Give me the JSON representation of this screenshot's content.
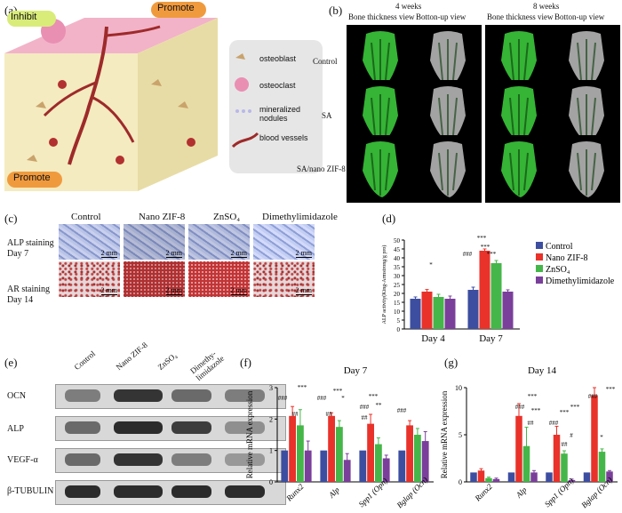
{
  "panels": {
    "a": "(a)",
    "b": "(b)",
    "c": "(c)",
    "d": "(d)",
    "e": "(e)",
    "f": "(f)",
    "g": "(g)"
  },
  "panel_a": {
    "inhibit": "Inhibit",
    "promote_top": "Promote",
    "promote_bottom": "Promote",
    "legend": [
      "osteoblast",
      "osteoclast",
      "mineralized nodules",
      "blood vessels"
    ]
  },
  "panel_b": {
    "weeks": [
      "4 weeks",
      "8 weeks"
    ],
    "views": [
      "Bone thickness view",
      "Botton-up view",
      "Bone thickness view",
      "Botton-up view"
    ],
    "rows": [
      "Control",
      "SA",
      "SA/nano ZIF-8"
    ]
  },
  "panel_c": {
    "columns": [
      "Control",
      "Nano ZIF-8",
      "ZnSO₄",
      "Dimethylimidazole"
    ],
    "rows": [
      [
        "ALP staining",
        "Day 7"
      ],
      [
        "AR staining",
        "Day 14"
      ]
    ],
    "scale": "2 mm"
  },
  "panel_e": {
    "lanes": [
      "Control",
      "Nano ZIF-8",
      "ZnSO₄",
      "Dimethy-limidazole"
    ],
    "rows": [
      "OCN",
      "ALP",
      "VEGF-α",
      "β-TUBULIN"
    ]
  },
  "chart_data": [
    {
      "type": "bar",
      "ylabel": "ALP activity(King-Armstrong/g pro)",
      "categories": [
        "Day 4",
        "Day 7"
      ],
      "ylim": [
        0,
        50
      ],
      "yticks": [
        0,
        5,
        10,
        15,
        20,
        25,
        30,
        35,
        40,
        45,
        50
      ],
      "series": [
        {
          "name": "Control",
          "color": "#3d4ea0",
          "values": [
            17,
            22
          ],
          "err": [
            1,
            1.5
          ]
        },
        {
          "name": "Nano ZIF-8",
          "color": "#e8322a",
          "values": [
            21,
            44
          ],
          "err": [
            1.2,
            1
          ]
        },
        {
          "name": "ZnSO₄",
          "color": "#45b649",
          "values": [
            18,
            37
          ],
          "err": [
            1.5,
            1.5
          ]
        },
        {
          "name": "Dimethylimidazole",
          "color": "#7a3f9a",
          "values": [
            17,
            21
          ],
          "err": [
            1.5,
            1
          ]
        }
      ],
      "annotations": [
        "*",
        "***",
        "***",
        "***",
        "###"
      ]
    },
    {
      "type": "bar",
      "title": "Day 7",
      "ylabel": "Relative mRNA expression",
      "categories": [
        "Runx2",
        "Alp",
        "Spp1 (Opn)",
        "Bglap (Ocn)"
      ],
      "ylim": [
        0,
        3
      ],
      "yticks": [
        0,
        1,
        2,
        3
      ],
      "series": [
        {
          "name": "Control",
          "color": "#3d4ea0",
          "values": [
            1,
            1,
            1,
            1
          ],
          "err": [
            0,
            0,
            0,
            0
          ]
        },
        {
          "name": "Nano ZIF-8",
          "color": "#e8322a",
          "values": [
            2.1,
            2.1,
            1.85,
            1.8
          ],
          "err": [
            0.3,
            0.1,
            0.3,
            0.15
          ]
        },
        {
          "name": "ZnSO₄",
          "color": "#45b649",
          "values": [
            1.8,
            1.75,
            1.2,
            1.5
          ],
          "err": [
            0.5,
            0.2,
            0.2,
            0.2
          ]
        },
        {
          "name": "Dimethylimidazole",
          "color": "#7a3f9a",
          "values": [
            1,
            0.7,
            0.75,
            1.3
          ],
          "err": [
            0.3,
            0.2,
            0.1,
            0.3
          ]
        }
      ],
      "annotations": [
        "***",
        "***",
        "***",
        "*",
        "**",
        "##",
        "###",
        "###",
        "###",
        "###",
        "##",
        "##"
      ]
    },
    {
      "type": "bar",
      "title": "Day 14",
      "ylabel": "Relative mRNA expression",
      "categories": [
        "Runx2",
        "Alp",
        "Spp1 (Opn)",
        "Bglap (Ocn)"
      ],
      "ylim": [
        0,
        10
      ],
      "yticks": [
        0,
        5,
        10
      ],
      "series": [
        {
          "name": "Control",
          "color": "#3d4ea0",
          "values": [
            1,
            1,
            1,
            1
          ],
          "err": [
            0,
            0,
            0,
            0
          ]
        },
        {
          "name": "Nano ZIF-8",
          "color": "#e8322a",
          "values": [
            1.2,
            7,
            5,
            9.2
          ],
          "err": [
            0.2,
            1.3,
            0.9,
            0.8
          ]
        },
        {
          "name": "ZnSO₄",
          "color": "#45b649",
          "values": [
            0.4,
            3.8,
            3,
            3.2
          ],
          "err": [
            0.1,
            2,
            0.3,
            0.3
          ]
        },
        {
          "name": "Dimethylimidazole",
          "color": "#7a3f9a",
          "values": [
            0.3,
            1,
            0.2,
            1.1
          ],
          "err": [
            0.1,
            0.2,
            0.1,
            0.1
          ]
        }
      ],
      "annotations": [
        "***",
        "***",
        "***",
        "***",
        "***",
        "*",
        "#",
        "###",
        "###",
        "###",
        "##",
        "##"
      ]
    }
  ]
}
